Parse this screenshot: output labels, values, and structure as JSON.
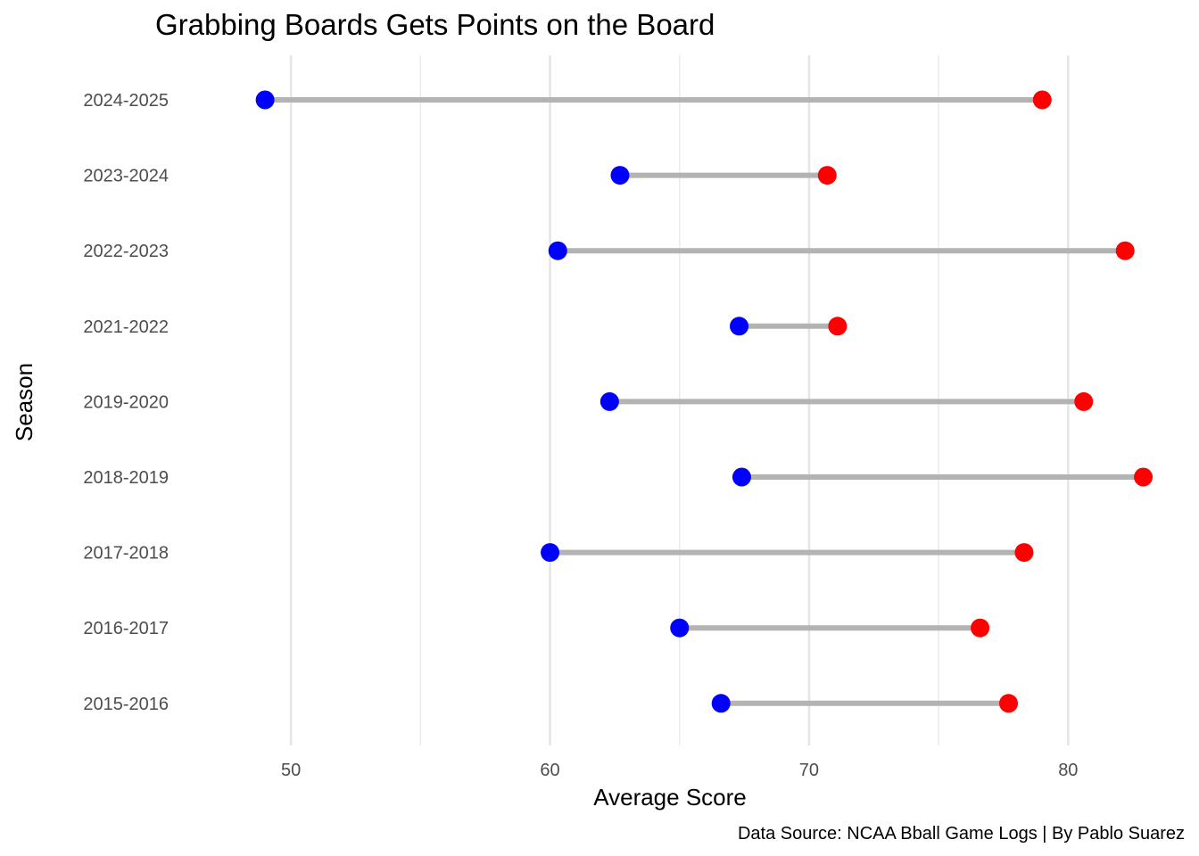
{
  "chart_data": {
    "type": "dumbbell",
    "title": "Grabbing Boards Gets Points on the Board",
    "xlabel": "Average Score",
    "ylabel": "Season",
    "caption": "Data Source: NCAA Bball Game Logs | By Pablo Suarez",
    "xlim": [
      46,
      84.5
    ],
    "x_ticks": [
      50,
      60,
      70,
      80
    ],
    "grid": true,
    "categories": [
      "2024-2025",
      "2023-2024",
      "2022-2023",
      "2021-2022",
      "2019-2020",
      "2018-2019",
      "2017-2018",
      "2016-2017",
      "2015-2016"
    ],
    "series": [
      {
        "color": "#0000ff",
        "values": [
          49.0,
          62.7,
          60.3,
          67.3,
          62.3,
          67.4,
          60.0,
          65.0,
          66.6
        ]
      },
      {
        "color": "#ff0000",
        "values": [
          79.0,
          70.7,
          82.2,
          71.1,
          80.6,
          82.9,
          78.3,
          76.6,
          77.7
        ]
      }
    ],
    "segment_color": "#b3b3b3"
  }
}
